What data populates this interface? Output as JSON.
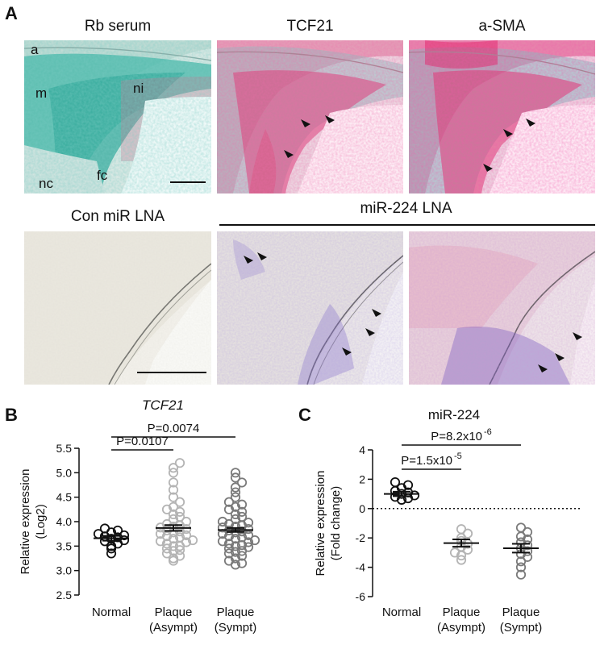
{
  "panel_labels": {
    "a": "A",
    "b": "B",
    "c": "C"
  },
  "panel_a": {
    "top_row": [
      {
        "title": "Rb serum"
      },
      {
        "title": "TCF21"
      },
      {
        "title": "a-SMA"
      }
    ],
    "tissue_labels": {
      "a": "a",
      "m": "m",
      "ni": "ni",
      "nc": "nc",
      "fc": "fc"
    },
    "bottom_row": {
      "con_title": "Con miR LNA",
      "mir_title": "miR-224 LNA"
    }
  },
  "chart_data": [
    {
      "type": "scatter",
      "title": "TCF21",
      "title_italic": true,
      "ylabel_line1": "Relative expression",
      "ylabel_line2": "(Log2)",
      "ylim": [
        2.5,
        5.5
      ],
      "yticks": [
        "2.5",
        "3.0",
        "3.5",
        "4.0",
        "4.5",
        "5.0",
        "5.5"
      ],
      "ytick_values": [
        2.5,
        3.0,
        3.5,
        4.0,
        4.5,
        5.0,
        5.5
      ],
      "categories": [
        {
          "line1": "Normal",
          "line2": ""
        },
        {
          "line1": "Plaque",
          "line2": "(Asympt)"
        },
        {
          "line1": "Plaque",
          "line2": "(Sympt)"
        }
      ],
      "colors": [
        "#111111",
        "#b4b4b4",
        "#7a7a7a"
      ],
      "groups": [
        {
          "mean": 3.66,
          "sem": 0.05,
          "points": [
            3.35,
            3.45,
            3.5,
            3.55,
            3.6,
            3.62,
            3.65,
            3.68,
            3.7,
            3.72,
            3.75,
            3.78,
            3.82,
            3.86
          ]
        },
        {
          "mean": 3.87,
          "sem": 0.06,
          "points": [
            3.2,
            3.25,
            3.3,
            3.35,
            3.4,
            3.42,
            3.45,
            3.5,
            3.5,
            3.55,
            3.58,
            3.6,
            3.62,
            3.65,
            3.68,
            3.7,
            3.72,
            3.75,
            3.78,
            3.8,
            3.82,
            3.85,
            3.88,
            3.9,
            3.92,
            3.95,
            4.0,
            4.05,
            4.1,
            4.15,
            4.2,
            4.25,
            4.3,
            4.4,
            4.5,
            4.65,
            4.8,
            5.0,
            5.1,
            5.2
          ]
        },
        {
          "mean": 3.83,
          "sem": 0.04,
          "points": [
            3.12,
            3.15,
            3.2,
            3.25,
            3.3,
            3.35,
            3.38,
            3.4,
            3.45,
            3.48,
            3.5,
            3.52,
            3.55,
            3.58,
            3.6,
            3.62,
            3.65,
            3.68,
            3.7,
            3.72,
            3.75,
            3.78,
            3.8,
            3.82,
            3.85,
            3.88,
            3.9,
            3.92,
            3.95,
            3.98,
            4.0,
            4.05,
            4.1,
            4.15,
            4.2,
            4.25,
            4.3,
            4.35,
            4.4,
            4.5,
            4.6,
            4.7,
            4.8,
            4.9,
            5.0
          ]
        }
      ],
      "comparisons": [
        {
          "from": 0,
          "to": 1,
          "label": "P=0.0107"
        },
        {
          "from": 0,
          "to": 2,
          "label": "P=0.0074"
        }
      ]
    },
    {
      "type": "scatter",
      "title": "miR-224",
      "title_italic": false,
      "ylabel_line1": "Relative expression",
      "ylabel_line2": "(Fold change)",
      "ylim": [
        -6,
        4
      ],
      "yticks": [
        "-6",
        "-4",
        "-2",
        "0",
        "2",
        "4"
      ],
      "ytick_values": [
        -6,
        -4,
        -2,
        0,
        2,
        4
      ],
      "zero_line": true,
      "categories": [
        {
          "line1": "Normal",
          "line2": ""
        },
        {
          "line1": "Plaque",
          "line2": "(Asympt)"
        },
        {
          "line1": "Plaque",
          "line2": "(Sympt)"
        }
      ],
      "colors": [
        "#111111",
        "#b4b4b4",
        "#7a7a7a"
      ],
      "groups": [
        {
          "mean": 1.0,
          "sem": 0.15,
          "points": [
            0.6,
            0.7,
            0.8,
            0.9,
            1.0,
            1.1,
            1.2,
            1.4,
            1.6,
            1.8
          ]
        },
        {
          "mean": -2.35,
          "sem": 0.25,
          "points": [
            -1.4,
            -1.7,
            -2.0,
            -2.2,
            -2.4,
            -2.6,
            -2.8,
            -3.0,
            -3.2,
            -3.5
          ]
        },
        {
          "mean": -2.7,
          "sem": 0.3,
          "points": [
            -1.3,
            -1.6,
            -1.9,
            -2.1,
            -2.3,
            -2.5,
            -2.7,
            -2.9,
            -3.1,
            -3.3,
            -3.6,
            -4.0,
            -4.5
          ]
        }
      ],
      "comparisons": [
        {
          "from": 0,
          "to": 1,
          "label_base": "P=1.5x10",
          "label_exp": "-5"
        },
        {
          "from": 0,
          "to": 2,
          "label_base": "P=8.2x10",
          "label_exp": "-6"
        }
      ]
    }
  ]
}
